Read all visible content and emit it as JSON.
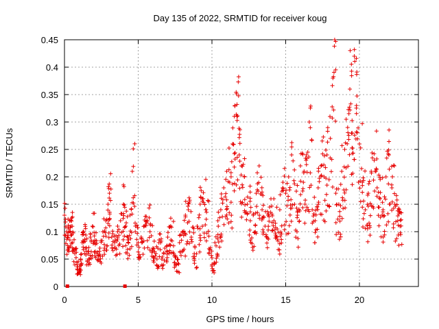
{
  "chart_data": {
    "type": "scatter",
    "title": "Day 135 of 2022, SRMTID for receiver koug",
    "xlabel": "GPS time / hours",
    "ylabel": "SRMTID / TECUs",
    "xlim": [
      0,
      24
    ],
    "ylim": [
      0,
      0.45
    ],
    "grid": true,
    "marker": "+",
    "color": "#e60000",
    "x_ticks": [
      0,
      5,
      10,
      15,
      20
    ],
    "x_tick_labels": [
      "0",
      "5",
      "10",
      "15",
      "20"
    ],
    "y_ticks": [
      0,
      0.05,
      0.1,
      0.15,
      0.2,
      0.25,
      0.3,
      0.35,
      0.4,
      0.45
    ],
    "y_tick_labels": [
      "0",
      "0.05",
      "0.1",
      "0.15",
      "0.2",
      "0.25",
      "0.3",
      "0.35",
      "0.4",
      "0.45"
    ],
    "series": [
      {
        "name": "SRMTID",
        "x": [
          0.0,
          0.15,
          0.25,
          0.35,
          0.45,
          0.55,
          0.7,
          0.85,
          1.0,
          1.1,
          1.2,
          1.3,
          1.45,
          1.6,
          1.75,
          1.9,
          2.05,
          2.2,
          2.4,
          2.6,
          2.8,
          2.95,
          3.05,
          3.2,
          3.4,
          3.6,
          3.8,
          4.0,
          4.15,
          4.3,
          4.45,
          4.6,
          4.8,
          5.0,
          5.2,
          5.4,
          5.6,
          5.8,
          6.0,
          6.2,
          6.4,
          6.6,
          6.8,
          7.0,
          7.2,
          7.4,
          7.6,
          7.8,
          8.0,
          8.2,
          8.4,
          8.6,
          8.8,
          9.0,
          9.2,
          9.4,
          9.6,
          9.8,
          10.0,
          10.2,
          10.4,
          10.6,
          10.8,
          11.0,
          11.2,
          11.4,
          11.55,
          11.7,
          11.85,
          12.0,
          12.2,
          12.4,
          12.6,
          12.8,
          13.0,
          13.2,
          13.4,
          13.6,
          13.8,
          14.0,
          14.2,
          14.4,
          14.6,
          14.8,
          15.0,
          15.2,
          15.4,
          15.6,
          15.8,
          16.0,
          16.2,
          16.4,
          16.6,
          16.8,
          17.0,
          17.2,
          17.4,
          17.6,
          17.8,
          18.0,
          18.2,
          18.4,
          18.6,
          18.8,
          19.0,
          19.2,
          19.35,
          19.5,
          19.65,
          19.8,
          20.0,
          20.2,
          20.4,
          20.6,
          20.8,
          21.0,
          21.2,
          21.4,
          21.6,
          21.8,
          22.0,
          22.2,
          22.4,
          22.6,
          22.75
        ],
        "y": [
          0.13,
          0.1,
          0.09,
          0.12,
          0.11,
          0.08,
          0.06,
          0.04,
          0.03,
          0.05,
          0.08,
          0.1,
          0.07,
          0.06,
          0.09,
          0.11,
          0.08,
          0.06,
          0.07,
          0.1,
          0.12,
          0.15,
          0.17,
          0.09,
          0.08,
          0.1,
          0.12,
          0.15,
          0.11,
          0.09,
          0.13,
          0.21,
          0.1,
          0.08,
          0.09,
          0.11,
          0.12,
          0.1,
          0.07,
          0.06,
          0.08,
          0.05,
          0.07,
          0.09,
          0.11,
          0.06,
          0.04,
          0.08,
          0.1,
          0.13,
          0.14,
          0.09,
          0.06,
          0.11,
          0.15,
          0.16,
          0.14,
          0.06,
          0.04,
          0.08,
          0.12,
          0.14,
          0.18,
          0.21,
          0.19,
          0.26,
          0.33,
          0.31,
          0.24,
          0.22,
          0.2,
          0.15,
          0.12,
          0.13,
          0.17,
          0.22,
          0.14,
          0.11,
          0.13,
          0.16,
          0.12,
          0.09,
          0.14,
          0.18,
          0.17,
          0.2,
          0.24,
          0.15,
          0.13,
          0.22,
          0.19,
          0.24,
          0.3,
          0.14,
          0.12,
          0.18,
          0.22,
          0.2,
          0.24,
          0.31,
          0.38,
          0.17,
          0.15,
          0.21,
          0.25,
          0.29,
          0.36,
          0.28,
          0.42,
          0.33,
          0.26,
          0.19,
          0.14,
          0.17,
          0.21,
          0.23,
          0.18,
          0.16,
          0.14,
          0.2,
          0.24,
          0.18,
          0.15,
          0.12,
          0.11
        ]
      }
    ],
    "zero_points_x": [
      0.2,
      4.1
    ]
  }
}
